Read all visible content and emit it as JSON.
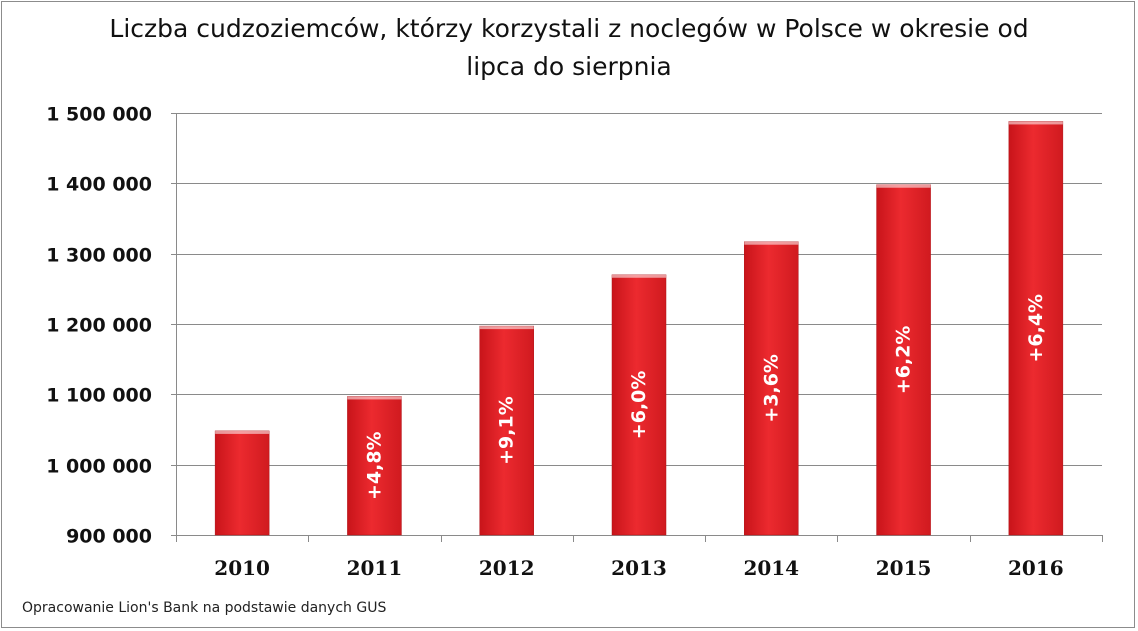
{
  "chart_data": {
    "type": "bar",
    "title_line1": "Liczba cudzoziemców, którzy korzystali z noclegów w Polsce w okresie od",
    "title_line2": "lipca do sierpnia",
    "categories": [
      "2010",
      "2011",
      "2012",
      "2013",
      "2014",
      "2015",
      "2016"
    ],
    "values": [
      1048000,
      1097000,
      1197000,
      1270000,
      1317000,
      1398000,
      1488000
    ],
    "bar_labels": [
      "",
      "+4,8%",
      "+9,1%",
      "+6,0%",
      "+3,6%",
      "+6,2%",
      "+6,4%"
    ],
    "ylim": [
      900000,
      1500000
    ],
    "yticks": [
      900000,
      1000000,
      1100000,
      1200000,
      1300000,
      1400000,
      1500000
    ],
    "ytick_labels": [
      "900 000",
      "1 000 000",
      "1 100 000",
      "1 200 000",
      "1 300 000",
      "1 400 000",
      "1 500 000"
    ],
    "grid": true,
    "bar_color": "#e31e24"
  },
  "source_note": "Opracowanie Lion's Bank na podstawie danych GUS"
}
